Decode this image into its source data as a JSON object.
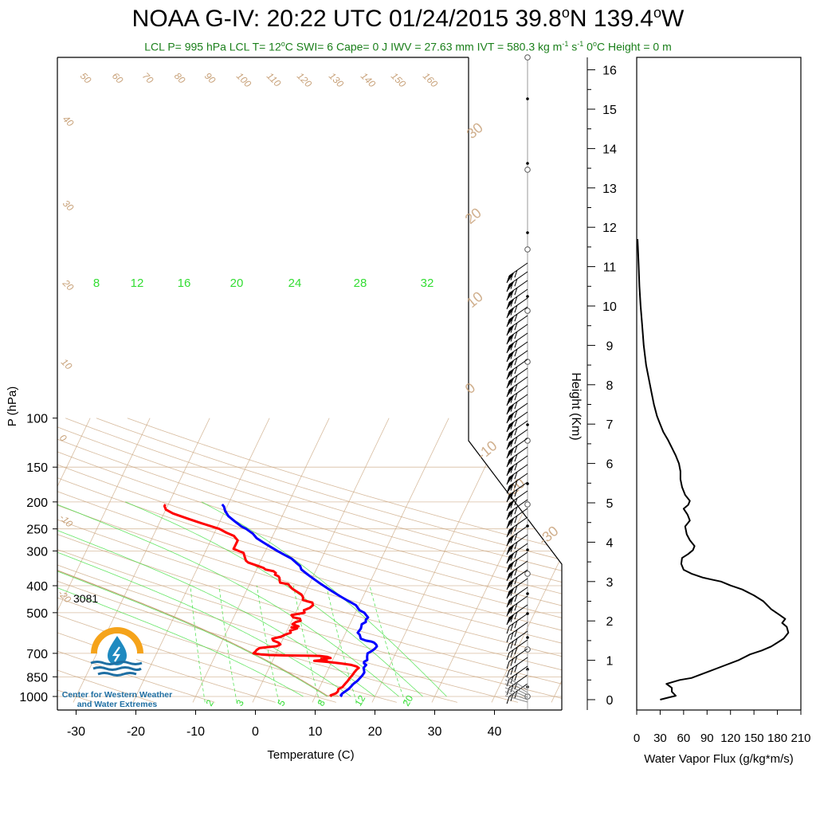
{
  "header": {
    "title_main": "NOAA G-IV: 20:22 UTC 01/24/2015  39.8",
    "title_deg1": "o",
    "title_mid": "N 139.4",
    "title_deg2": "o",
    "title_end": "W",
    "sub_a": "LCL P= 995 hPa  LCL T= 12",
    "sub_deg": "o",
    "sub_b": "C  SWI= 6  Cape= 0 J  IWV = 27.63 mm  IVT = 580.3 kg m",
    "sub_e1": "-1",
    "sub_c": " s",
    "sub_e2": "-1",
    "sub_d": "  0",
    "sub_deg2": "o",
    "sub_f": "C Height = 0 m"
  },
  "logo": {
    "line1": "Center for Western Weather",
    "line2": "and Water Extremes",
    "colors": {
      "sun": "#f5a31a",
      "drop": "#1f8ac0",
      "waves": "#1f6fa3"
    }
  },
  "annotation_3081": "3081",
  "colors": {
    "temperature": "#ff0000",
    "dewpoint": "#0000ff",
    "dry_adiabat": "#c8a27a",
    "isotherm": "#c8a27a",
    "mixing_ratio": "#33dd33",
    "moist_adiabat": "#33dd33",
    "parcel": "#c8a27a",
    "flux": "#000000"
  },
  "chart_data": [
    {
      "type": "line",
      "title": "",
      "xlabel": "Temperature (C)",
      "ylabel": "P (hPa)",
      "y_scale": "log",
      "xlim": [
        -34,
        50
      ],
      "ylim": [
        1000,
        100
      ],
      "x_ticks": [
        "-30",
        "-20",
        "-10",
        "0",
        "10",
        "20",
        "30",
        "40"
      ],
      "y_ticks": [
        "100",
        "150",
        "200",
        "250",
        "300",
        "400",
        "500",
        "700",
        "850",
        "1000"
      ],
      "isotherm_labels_upper": [
        "50",
        "60",
        "70",
        "80",
        "90",
        "100",
        "110",
        "120",
        "130",
        "140",
        "150",
        "160"
      ],
      "isotherm_labels_left": [
        "40",
        "30",
        "20",
        "10",
        "0",
        "-10",
        "-20"
      ],
      "right_labels": [
        "30",
        "20",
        "10",
        "0",
        "-10",
        "-20",
        "-30"
      ],
      "mixing_ratio_labels_top": [
        "8",
        "12",
        "16",
        "20",
        "24",
        "28",
        "32"
      ],
      "mixing_ratio_labels_bottom": [
        "2",
        "3",
        "5",
        "8",
        "12",
        "20"
      ],
      "series": [
        {
          "name": "Temperature",
          "points": [
            [
              12.8,
              1000
            ],
            [
              12.5,
              990
            ],
            [
              13.2,
              975
            ],
            [
              13.4,
              960
            ],
            [
              13.3,
              940
            ],
            [
              13.8,
              925
            ],
            [
              14.0,
              900
            ],
            [
              14.2,
              880
            ],
            [
              14.3,
              860
            ],
            [
              14.5,
              840
            ],
            [
              14.6,
              820
            ],
            [
              14.8,
              800
            ],
            [
              15.0,
              790
            ],
            [
              14.5,
              780
            ],
            [
              13.5,
              770
            ],
            [
              11.5,
              760
            ],
            [
              9.5,
              752
            ],
            [
              7.0,
              745
            ],
            [
              8.5,
              740
            ],
            [
              9.0,
              738
            ],
            [
              8.0,
              732
            ],
            [
              9.5,
              728
            ],
            [
              8.8,
              720
            ],
            [
              7.5,
              715
            ],
            [
              4.5,
              713
            ],
            [
              1.5,
              712
            ],
            [
              -1.0,
              710
            ],
            [
              -2.5,
              706
            ],
            [
              -3.8,
              700
            ],
            [
              -3.6,
              690
            ],
            [
              -3.5,
              680
            ],
            [
              -3.2,
              670
            ],
            [
              -2.0,
              665
            ],
            [
              -0.5,
              660
            ],
            [
              0.0,
              650
            ],
            [
              -0.5,
              640
            ],
            [
              -1.5,
              630
            ],
            [
              -1.8,
              620
            ],
            [
              -0.5,
              610
            ],
            [
              0.0,
              600
            ],
            [
              0.8,
              590
            ],
            [
              0.5,
              580
            ],
            [
              1.5,
              570
            ],
            [
              0.5,
              565
            ],
            [
              1.6,
              560
            ],
            [
              0.4,
              550
            ],
            [
              0.8,
              540
            ],
            [
              1.5,
              535
            ],
            [
              1.2,
              525
            ],
            [
              0.0,
              520
            ],
            [
              -0.5,
              510
            ],
            [
              0.5,
              505
            ],
            [
              1.5,
              500
            ],
            [
              1.2,
              490
            ],
            [
              2.0,
              480
            ],
            [
              2.3,
              470
            ],
            [
              2.0,
              460
            ],
            [
              1.0,
              455
            ],
            [
              0.2,
              450
            ],
            [
              0.0,
              440
            ],
            [
              -0.5,
              430
            ],
            [
              -1.5,
              420
            ],
            [
              -2.5,
              410
            ],
            [
              -3.2,
              400
            ],
            [
              -3.5,
              395
            ],
            [
              -5.0,
              390
            ],
            [
              -5.2,
              385
            ],
            [
              -5.5,
              375
            ],
            [
              -5.8,
              370
            ],
            [
              -6.5,
              365
            ],
            [
              -6.5,
              360
            ],
            [
              -7.0,
              355
            ],
            [
              -8.5,
              350
            ],
            [
              -9.0,
              345
            ],
            [
              -10.0,
              340
            ],
            [
              -11.0,
              335
            ],
            [
              -12.0,
              330
            ],
            [
              -12.5,
              325
            ],
            [
              -13.0,
              315
            ],
            [
              -13.5,
              305
            ],
            [
              -14.5,
              300
            ],
            [
              -15.5,
              295
            ],
            [
              -15.5,
              285
            ],
            [
              -15.5,
              275
            ],
            [
              -16.5,
              265
            ],
            [
              -18.0,
              258
            ],
            [
              -19.5,
              250
            ],
            [
              -21.0,
              245
            ],
            [
              -22.5,
              240
            ],
            [
              -24.0,
              235
            ],
            [
              -25.5,
              230
            ],
            [
              -27.0,
              225
            ],
            [
              -28.5,
              220
            ],
            [
              -30.0,
              213
            ],
            [
              -30.5,
              207
            ],
            [
              -30.5,
              204
            ]
          ]
        },
        {
          "name": "Dewpoint",
          "points": [
            [
              14.5,
              1000
            ],
            [
              14.2,
              990
            ],
            [
              14.3,
              975
            ],
            [
              14.6,
              960
            ],
            [
              15.0,
              940
            ],
            [
              15.2,
              920
            ],
            [
              15.4,
              900
            ],
            [
              15.8,
              880
            ],
            [
              16.0,
              860
            ],
            [
              16.2,
              840
            ],
            [
              16.3,
              820
            ],
            [
              16.0,
              800
            ],
            [
              15.8,
              790
            ],
            [
              16.0,
              770
            ],
            [
              15.5,
              760
            ],
            [
              15.4,
              750
            ],
            [
              15.8,
              740
            ],
            [
              15.5,
              720
            ],
            [
              15.3,
              700
            ],
            [
              15.7,
              690
            ],
            [
              16.0,
              680
            ],
            [
              16.2,
              670
            ],
            [
              16.3,
              660
            ],
            [
              16.0,
              650
            ],
            [
              15.5,
              640
            ],
            [
              15.0,
              635
            ],
            [
              14.0,
              630
            ],
            [
              13.0,
              620
            ],
            [
              12.5,
              600
            ],
            [
              12.0,
              590
            ],
            [
              12.2,
              570
            ],
            [
              12.0,
              550
            ],
            [
              12.5,
              540
            ],
            [
              12.3,
              530
            ],
            [
              12.5,
              520
            ],
            [
              12.0,
              510
            ],
            [
              11.5,
              500
            ],
            [
              10.5,
              490
            ],
            [
              10.0,
              480
            ],
            [
              9.5,
              470
            ],
            [
              8.5,
              460
            ],
            [
              7.5,
              450
            ],
            [
              6.5,
              440
            ],
            [
              5.5,
              430
            ],
            [
              4.5,
              420
            ],
            [
              3.5,
              410
            ],
            [
              2.5,
              400
            ],
            [
              1.5,
              390
            ],
            [
              0.5,
              380
            ],
            [
              -0.5,
              370
            ],
            [
              -1.5,
              360
            ],
            [
              -2.5,
              350
            ],
            [
              -3.0,
              340
            ],
            [
              -3.5,
              335
            ],
            [
              -4.0,
              330
            ],
            [
              -5.0,
              320
            ],
            [
              -6.5,
              310
            ],
            [
              -8.0,
              300
            ],
            [
              -9.5,
              290
            ],
            [
              -11.0,
              280
            ],
            [
              -12.5,
              270
            ],
            [
              -13.5,
              260
            ],
            [
              -15.0,
              250
            ],
            [
              -16.0,
              245
            ],
            [
              -17.5,
              235
            ],
            [
              -19.0,
              225
            ],
            [
              -20.0,
              215
            ],
            [
              -20.5,
              208
            ],
            [
              -21.0,
              204
            ]
          ]
        }
      ],
      "wind_barb_column": "right of diagram at about 46 C"
    },
    {
      "type": "line",
      "title": "",
      "xlabel": "Water Vapor Flux (g/kg*m/s)",
      "ylabel": "Height (Km)",
      "xlim": [
        0,
        210
      ],
      "ylim": [
        -0.2,
        16.3
      ],
      "x_ticks": [
        "0",
        "30",
        "60",
        "90",
        "120",
        "150",
        "180",
        "210"
      ],
      "y_ticks": [
        "0",
        "1",
        "2",
        "3",
        "4",
        "5",
        "6",
        "7",
        "8",
        "9",
        "10",
        "11",
        "12",
        "13",
        "14",
        "15",
        "16"
      ],
      "series": [
        {
          "name": "",
          "points": [
            [
              30,
              0.0
            ],
            [
              40,
              0.05
            ],
            [
              50,
              0.1
            ],
            [
              45,
              0.2
            ],
            [
              45,
              0.3
            ],
            [
              38,
              0.4
            ],
            [
              55,
              0.5
            ],
            [
              70,
              0.55
            ],
            [
              90,
              0.7
            ],
            [
              110,
              0.85
            ],
            [
              130,
              1.0
            ],
            [
              145,
              1.15
            ],
            [
              160,
              1.25
            ],
            [
              172,
              1.35
            ],
            [
              180,
              1.45
            ],
            [
              188,
              1.55
            ],
            [
              194,
              1.7
            ],
            [
              192,
              1.85
            ],
            [
              186,
              1.95
            ],
            [
              190,
              2.05
            ],
            [
              183,
              2.15
            ],
            [
              172,
              2.3
            ],
            [
              162,
              2.5
            ],
            [
              150,
              2.65
            ],
            [
              135,
              2.8
            ],
            [
              120,
              2.9
            ],
            [
              108,
              3.0
            ],
            [
              96,
              3.05
            ],
            [
              85,
              3.1
            ],
            [
              70,
              3.2
            ],
            [
              60,
              3.3
            ],
            [
              57,
              3.45
            ],
            [
              58,
              3.6
            ],
            [
              66,
              3.7
            ],
            [
              72,
              3.8
            ],
            [
              74,
              3.9
            ],
            [
              68,
              4.05
            ],
            [
              64,
              4.2
            ],
            [
              62,
              4.4
            ],
            [
              68,
              4.55
            ],
            [
              65,
              4.7
            ],
            [
              60,
              4.85
            ],
            [
              66,
              4.95
            ],
            [
              68,
              5.05
            ],
            [
              62,
              5.2
            ],
            [
              58,
              5.4
            ],
            [
              56,
              5.6
            ],
            [
              56,
              5.8
            ],
            [
              54,
              6.0
            ],
            [
              50,
              6.2
            ],
            [
              45,
              6.4
            ],
            [
              40,
              6.6
            ],
            [
              34,
              6.8
            ],
            [
              30,
              7.0
            ],
            [
              26,
              7.2
            ],
            [
              22,
              7.5
            ],
            [
              19,
              7.8
            ],
            [
              16,
              8.1
            ],
            [
              12,
              8.5
            ],
            [
              9,
              9.0
            ],
            [
              7,
              9.5
            ],
            [
              5,
              10.0
            ],
            [
              3.5,
              10.5
            ],
            [
              2.5,
              11.0
            ],
            [
              1.5,
              11.5
            ],
            [
              1,
              11.7
            ]
          ]
        }
      ]
    }
  ]
}
